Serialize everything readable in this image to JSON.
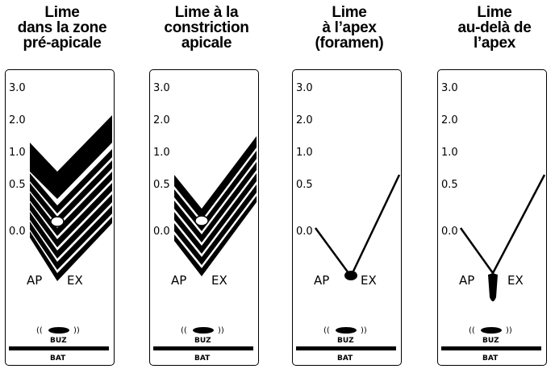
{
  "scale": [
    "3.0",
    "2.0",
    "1.0",
    "0.5",
    "0.0"
  ],
  "apex_left": "AP",
  "apex_right": "EX",
  "buz": "BUZ",
  "bat": "BAT",
  "panels": [
    {
      "title": [
        "Lime",
        "dans la zone",
        "pré-apicale"
      ],
      "zero_label": "0.0",
      "mode": "preapical"
    },
    {
      "title": [
        "Lime à la",
        "constriction",
        "apicale"
      ],
      "zero_label": "0.0",
      "mode": "constriction"
    },
    {
      "title": [
        "Lime",
        "à l’apex",
        "(foramen)"
      ],
      "zero_label": "0.0",
      "mode": "apex"
    },
    {
      "title": [
        "Lime",
        "au-delà de",
        "l’apex"
      ],
      "zero_label": "0.0",
      "mode": "beyond"
    }
  ]
}
